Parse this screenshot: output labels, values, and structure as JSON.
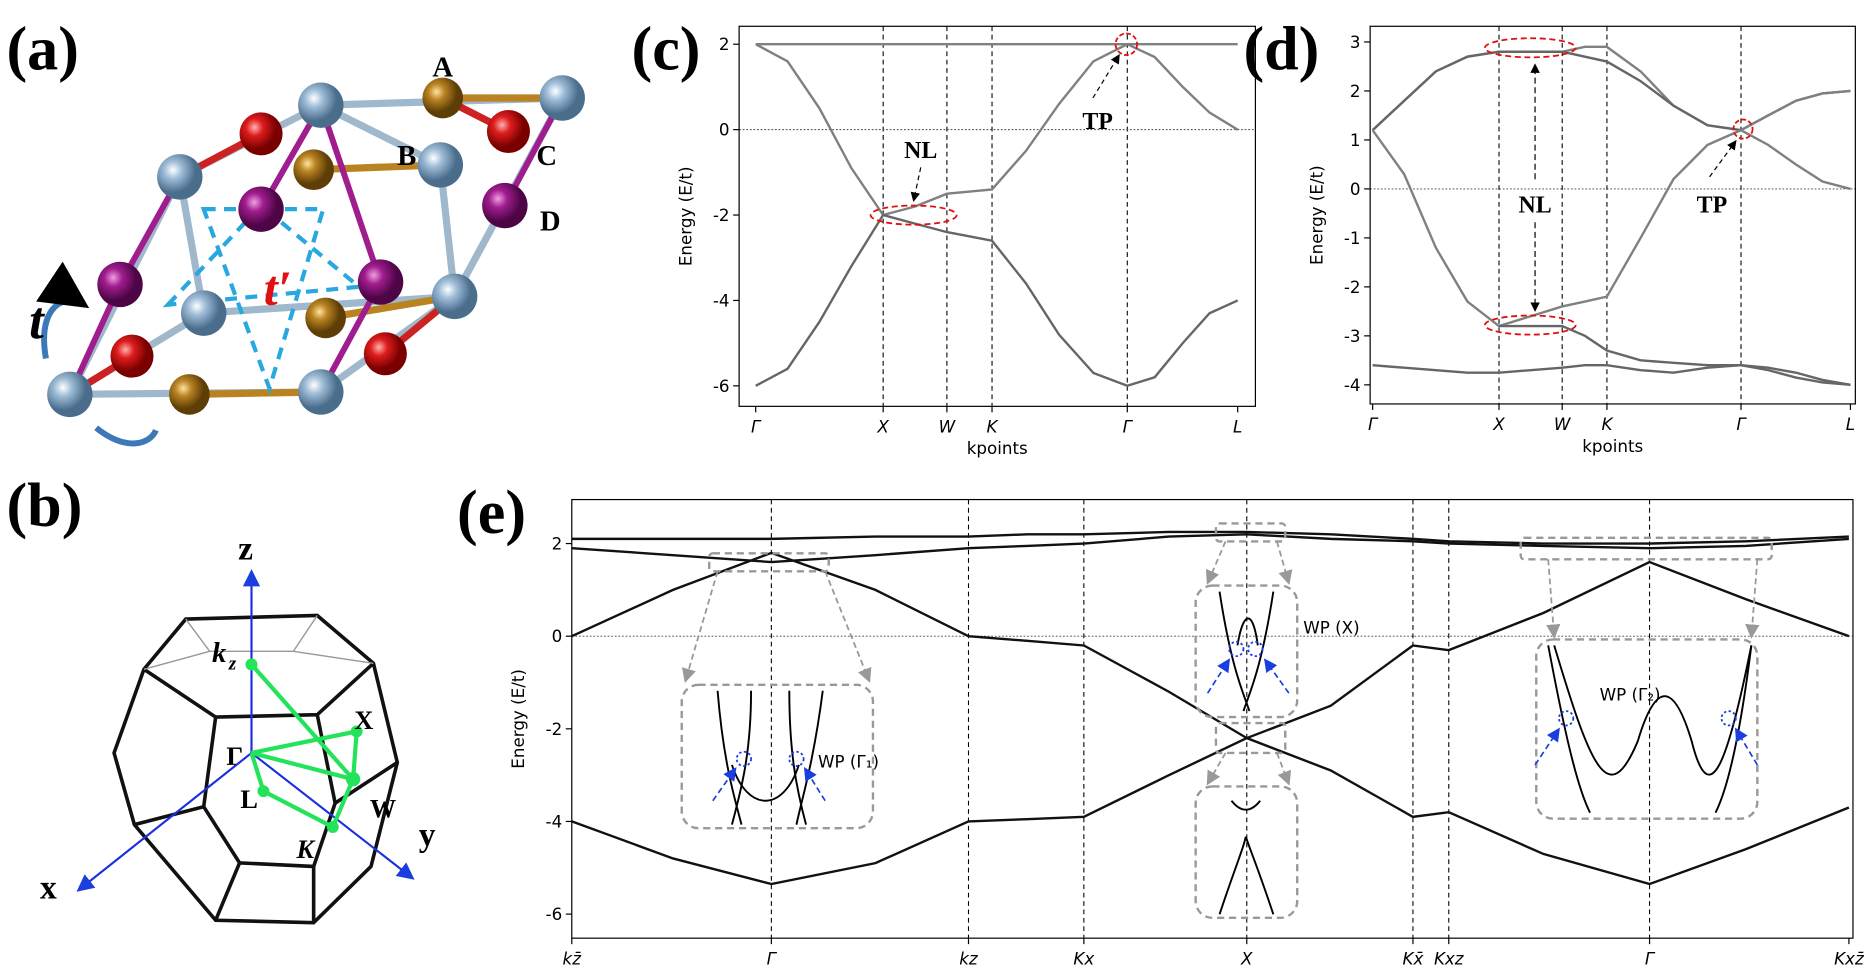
{
  "panel_labels": [
    "(a)",
    "(b)",
    "(c)",
    "(d)",
    "(e)"
  ],
  "crystal": {
    "sites": [
      "A",
      "B",
      "C",
      "D"
    ],
    "hoppings": [
      "t",
      "t′"
    ]
  },
  "brillouin_zone": {
    "axes": [
      "z",
      "x",
      "y"
    ],
    "points": [
      "k",
      "z",
      "Γ",
      "X",
      "W",
      "L",
      "K"
    ]
  },
  "chart_data": [
    {
      "type": "line",
      "y_label": "Energy (E/t)",
      "x_label": "kpoints",
      "x": [
        0,
        0.25,
        0.5,
        0.75,
        1,
        1.25,
        1.5,
        1.68,
        1.854,
        2.12,
        2.38,
        2.65,
        2.915,
        3.13,
        3.35,
        3.56,
        3.781
      ],
      "xlim": [
        -0.13,
        3.92
      ],
      "ylim": [
        -6.48,
        2.42
      ],
      "xticks": [
        {
          "value": 0,
          "label": "Γ"
        },
        {
          "value": 1,
          "label": "X"
        },
        {
          "value": 1.5,
          "label": "W"
        },
        {
          "value": 1.854,
          "label": "K"
        },
        {
          "value": 2.915,
          "label": "Γ"
        },
        {
          "value": 3.781,
          "label": "L"
        }
      ],
      "yticks": [
        -6,
        -4,
        -2,
        0,
        2
      ],
      "zero_line": 0,
      "series": [
        {
          "color": "#808080",
          "values": [
            2,
            2,
            2,
            2,
            2,
            2,
            2,
            2,
            2,
            2,
            2,
            2,
            2,
            2,
            2,
            2,
            2
          ]
        },
        {
          "color": "#808080",
          "values": [
            2,
            1.6,
            0.5,
            -0.9,
            -2,
            -1.8,
            -1.5,
            -1.45,
            -1.4,
            -0.5,
            0.6,
            1.6,
            2,
            1.7,
            1.0,
            0.4,
            0
          ]
        },
        {
          "color": "#666666",
          "values": [
            -6,
            -5.6,
            -4.5,
            -3.2,
            -2,
            -2.2,
            -2.4,
            -2.5,
            -2.6,
            -3.6,
            -4.8,
            -5.7,
            -6,
            -5.8,
            -5.0,
            -4.3,
            -4
          ]
        }
      ],
      "annotations": [
        "NL",
        "TP"
      ]
    },
    {
      "type": "line",
      "y_label": "Energy (E/t)",
      "x_label": "kpoints",
      "x": [
        0,
        0.25,
        0.5,
        0.75,
        1,
        1.25,
        1.5,
        1.68,
        1.854,
        2.12,
        2.38,
        2.65,
        2.915,
        3.13,
        3.35,
        3.56,
        3.781
      ],
      "xlim": [
        -0.02,
        3.82
      ],
      "ylim": [
        -4.39,
        3.32
      ],
      "xticks": [
        {
          "value": 0,
          "label": "Γ"
        },
        {
          "value": 1,
          "label": "X"
        },
        {
          "value": 1.5,
          "label": "W"
        },
        {
          "value": 1.854,
          "label": "K"
        },
        {
          "value": 2.915,
          "label": "Γ"
        },
        {
          "value": 3.781,
          "label": "L"
        }
      ],
      "yticks": [
        -4,
        -3,
        -2,
        -1,
        0,
        1,
        2,
        3
      ],
      "zero_line": 0,
      "series": [
        {
          "color": "#808080",
          "values": [
            1.2,
            1.8,
            2.4,
            2.7,
            2.8,
            2.8,
            2.8,
            2.9,
            2.9,
            2.4,
            1.7,
            1.3,
            1.2,
            0.9,
            0.5,
            0.15,
            0
          ]
        },
        {
          "color": "#666666",
          "values": [
            1.2,
            1.8,
            2.4,
            2.7,
            2.8,
            2.8,
            2.8,
            2.7,
            2.6,
            2.2,
            1.7,
            1.3,
            1.2,
            1.5,
            1.8,
            1.95,
            2.0
          ]
        },
        {
          "color": "#808080",
          "values": [
            1.2,
            0.3,
            -1.2,
            -2.3,
            -2.8,
            -2.6,
            -2.4,
            -2.3,
            -2.2,
            -1.0,
            0.2,
            0.9,
            1.2,
            1.5,
            1.8,
            1.95,
            2.0
          ]
        },
        {
          "color": "#666666",
          "values": [
            null,
            null,
            null,
            null,
            -2.8,
            -2.8,
            -2.8,
            -3.0,
            -3.3,
            -3.5,
            -3.55,
            -3.6,
            -3.6,
            -3.7,
            -3.85,
            -3.95,
            -4.0
          ]
        },
        {
          "color": "#666666",
          "values": [
            -3.6,
            -3.65,
            -3.7,
            -3.75,
            -3.75,
            -3.7,
            -3.65,
            -3.6,
            -3.6,
            -3.7,
            -3.75,
            -3.65,
            -3.6,
            -3.65,
            -3.75,
            -3.9,
            -4.0
          ]
        }
      ],
      "annotations": [
        "NL",
        "TP"
      ]
    },
    {
      "type": "line",
      "y_label": "Energy (E/t)",
      "x": [
        0,
        0.5,
        0.986,
        1.5,
        1.96,
        2.25,
        2.53,
        2.95,
        3.335,
        3.75,
        4.156,
        4.333,
        4.8,
        5.325,
        5.8,
        6.31
      ],
      "xlim": [
        0,
        6.33
      ],
      "ylim": [
        -6.52,
        2.95
      ],
      "xticks": [
        {
          "value": 0,
          "label": "kz̄"
        },
        {
          "value": 0.986,
          "label": "Γ"
        },
        {
          "value": 1.96,
          "label": "kz"
        },
        {
          "value": 2.53,
          "label": "Kx"
        },
        {
          "value": 3.335,
          "label": "X"
        },
        {
          "value": 4.156,
          "label": "Kx̄"
        },
        {
          "value": 4.333,
          "label": "Kxz"
        },
        {
          "value": 5.325,
          "label": "Γ"
        },
        {
          "value": 6.31,
          "label": "Kxz̄"
        }
      ],
      "yticks": [
        -6,
        -4,
        -2,
        0,
        2
      ],
      "zero_line": 0,
      "series": [
        {
          "color": "#111111",
          "values": [
            2.1,
            2.1,
            2.1,
            2.15,
            2.15,
            2.2,
            2.2,
            2.25,
            2.25,
            2.2,
            2.1,
            2.05,
            2.0,
            2.0,
            2.05,
            2.15
          ]
        },
        {
          "color": "#111111",
          "values": [
            1.9,
            1.75,
            1.6,
            1.75,
            1.9,
            1.95,
            2.0,
            2.15,
            2.2,
            2.1,
            2.05,
            2.0,
            1.95,
            1.9,
            1.95,
            2.1
          ]
        },
        {
          "color": "#111111",
          "values": [
            0,
            1.0,
            1.8,
            1.0,
            0,
            -0.1,
            -0.2,
            -1.2,
            -2.2,
            -1.5,
            -0.2,
            -0.3,
            0.5,
            1.6,
            0.8,
            0
          ]
        },
        {
          "color": "#111111",
          "values": [
            -4,
            -4.8,
            -5.35,
            -4.9,
            -4,
            -3.95,
            -3.9,
            -3.0,
            -2.2,
            -2.9,
            -3.9,
            -3.8,
            -4.7,
            -5.35,
            -4.6,
            -3.7
          ]
        }
      ],
      "annotations": [
        "WP (Γ₁)",
        "WP (X)",
        "WP (Γ₂)"
      ]
    }
  ]
}
